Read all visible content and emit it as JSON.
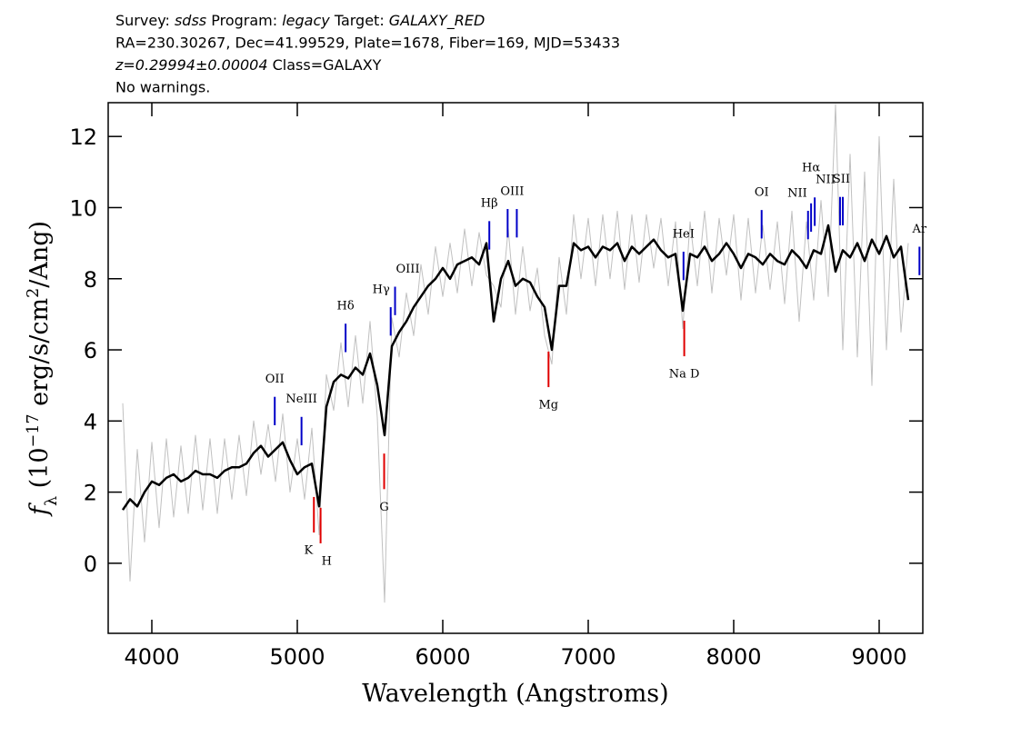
{
  "chart_data": {
    "type": "line",
    "header": [
      [
        {
          "text": "Survey: "
        },
        {
          "text": "sdss",
          "italic": true
        },
        {
          "text": " Program: "
        },
        {
          "text": "legacy",
          "italic": true
        },
        {
          "text": " Target: "
        },
        {
          "text": "GALAXY_RED",
          "italic": true
        }
      ],
      [
        {
          "text": "RA=230.30267, Dec=41.99529, Plate=1678, Fiber=169, MJD=53433"
        }
      ],
      [
        {
          "text": "z=0.29994±0.00004",
          "italic": true
        },
        {
          "text": " Class=GALAXY"
        }
      ],
      [
        {
          "text": "No warnings."
        }
      ]
    ],
    "xlabel": "Wavelength (Angstroms)",
    "ylabel": [
      {
        "text": "f",
        "italic": true
      },
      {
        "text": "λ",
        "sub": true
      },
      {
        "text": " (10"
      },
      {
        "text": "−17",
        "sup": true
      },
      {
        "text": " erg/s/cm"
      },
      {
        "text": "2",
        "sup": true
      },
      {
        "text": "/Ang)"
      }
    ],
    "xlim": [
      3700,
      9300
    ],
    "ylim": [
      -1.97,
      12.95
    ],
    "xticks": [
      4000,
      5000,
      6000,
      7000,
      8000,
      9000
    ],
    "yticks": [
      0,
      2,
      4,
      6,
      8,
      10,
      12
    ],
    "x": [
      3800,
      3850,
      3900,
      3950,
      4000,
      4050,
      4100,
      4150,
      4200,
      4250,
      4300,
      4350,
      4400,
      4450,
      4500,
      4550,
      4600,
      4650,
      4700,
      4750,
      4800,
      4850,
      4900,
      4950,
      5000,
      5050,
      5100,
      5150,
      5200,
      5250,
      5300,
      5350,
      5400,
      5450,
      5500,
      5550,
      5600,
      5650,
      5700,
      5750,
      5800,
      5850,
      5900,
      5950,
      6000,
      6050,
      6100,
      6150,
      6200,
      6250,
      6300,
      6350,
      6400,
      6450,
      6500,
      6550,
      6600,
      6650,
      6700,
      6750,
      6800,
      6850,
      6900,
      6950,
      7000,
      7050,
      7100,
      7150,
      7200,
      7250,
      7300,
      7350,
      7400,
      7450,
      7500,
      7550,
      7600,
      7650,
      7700,
      7750,
      7800,
      7850,
      7900,
      7950,
      8000,
      8050,
      8100,
      8150,
      8200,
      8250,
      8300,
      8350,
      8400,
      8450,
      8500,
      8550,
      8600,
      8650,
      8700,
      8750,
      8800,
      8850,
      8900,
      8950,
      9000,
      9050,
      9100,
      9150,
      9200
    ],
    "series": [
      {
        "color": "#c0c0c0",
        "width": 1,
        "values": [
          4.5,
          -0.5,
          3.2,
          0.6,
          3.4,
          1.0,
          3.5,
          1.3,
          3.3,
          1.4,
          3.6,
          1.5,
          3.5,
          1.4,
          3.5,
          1.8,
          3.6,
          1.9,
          4.0,
          2.5,
          3.9,
          2.3,
          4.2,
          2.0,
          3.5,
          1.8,
          3.8,
          0.8,
          5.3,
          4.3,
          6.2,
          4.4,
          6.4,
          4.5,
          6.8,
          4.1,
          -1.1,
          6.9,
          5.8,
          7.6,
          6.4,
          8.4,
          7.0,
          8.9,
          7.5,
          9.0,
          7.6,
          9.4,
          7.8,
          9.3,
          8.1,
          7.8,
          7.2,
          9.4,
          7.0,
          8.9,
          7.1,
          8.3,
          6.4,
          5.6,
          8.6,
          7.0,
          9.8,
          8.0,
          9.7,
          7.8,
          9.8,
          8.0,
          9.9,
          7.7,
          9.8,
          7.9,
          9.8,
          8.3,
          9.7,
          7.8,
          9.6,
          6.6,
          9.6,
          7.8,
          9.9,
          7.6,
          9.7,
          8.1,
          9.8,
          7.4,
          9.7,
          7.6,
          9.5,
          7.7,
          9.6,
          7.3,
          9.9,
          6.8,
          9.6,
          7.4,
          10.2,
          7.5,
          12.9,
          6.0,
          11.5,
          5.8,
          11.0,
          5.0,
          12.0,
          6.0,
          10.8,
          6.5,
          9.0
        ]
      },
      {
        "color": "#000000",
        "width": 2.5,
        "values": [
          1.5,
          1.8,
          1.6,
          2.0,
          2.3,
          2.2,
          2.4,
          2.5,
          2.3,
          2.4,
          2.6,
          2.5,
          2.5,
          2.4,
          2.6,
          2.7,
          2.7,
          2.8,
          3.1,
          3.3,
          3.0,
          3.2,
          3.4,
          2.9,
          2.5,
          2.7,
          2.8,
          1.6,
          4.4,
          5.1,
          5.3,
          5.2,
          5.5,
          5.3,
          5.9,
          5.0,
          3.6,
          6.1,
          6.5,
          6.8,
          7.2,
          7.5,
          7.8,
          8.0,
          8.3,
          8.0,
          8.4,
          8.5,
          8.6,
          8.4,
          9.0,
          6.8,
          8.0,
          8.5,
          7.8,
          8.0,
          7.9,
          7.5,
          7.2,
          6.0,
          7.8,
          7.8,
          9.0,
          8.8,
          8.9,
          8.6,
          8.9,
          8.8,
          9.0,
          8.5,
          8.9,
          8.7,
          8.9,
          9.1,
          8.8,
          8.6,
          8.7,
          7.1,
          8.7,
          8.6,
          8.9,
          8.5,
          8.7,
          9.0,
          8.7,
          8.3,
          8.7,
          8.6,
          8.4,
          8.7,
          8.5,
          8.4,
          8.8,
          8.6,
          8.3,
          8.8,
          8.7,
          9.5,
          8.2,
          8.8,
          8.6,
          9.0,
          8.5,
          9.1,
          8.7,
          9.2,
          8.6,
          8.9,
          7.4
        ]
      }
    ],
    "emission_lines": {
      "color": "#0000c8",
      "lines": [
        {
          "label": "OII",
          "x": [
            4845
          ]
        },
        {
          "label": "NeIII",
          "x": [
            5029
          ]
        },
        {
          "label": "Hδ",
          "x": [
            5332
          ]
        },
        {
          "label": "Hγ",
          "x": [
            5642
          ]
        },
        {
          "label": "OIII",
          "x": [
            5672
          ]
        },
        {
          "label": "Hβ",
          "x": [
            6320
          ]
        },
        {
          "label": "OIII",
          "x": [
            6446,
            6509
          ]
        },
        {
          "label": "HeI",
          "x": [
            7655
          ]
        },
        {
          "label": "OI",
          "x": [
            8192
          ]
        },
        {
          "label": "NII",
          "x": [
            8511
          ]
        },
        {
          "label": "Hα",
          "x": [
            8532
          ]
        },
        {
          "label": "NII",
          "x": [
            8557
          ]
        },
        {
          "label": "SII",
          "x": [
            8731,
            8750
          ]
        },
        {
          "label": "Ar",
          "x": [
            9277
          ]
        }
      ]
    },
    "absorption_lines": {
      "color": "#e00000",
      "lines": [
        {
          "label": "K",
          "x": [
            5114
          ]
        },
        {
          "label": "H",
          "x": [
            5160
          ]
        },
        {
          "label": "G",
          "x": [
            5597
          ]
        },
        {
          "label": "Mg",
          "x": [
            6727
          ]
        },
        {
          "label": "Na D",
          "x": [
            7660
          ]
        }
      ]
    }
  }
}
